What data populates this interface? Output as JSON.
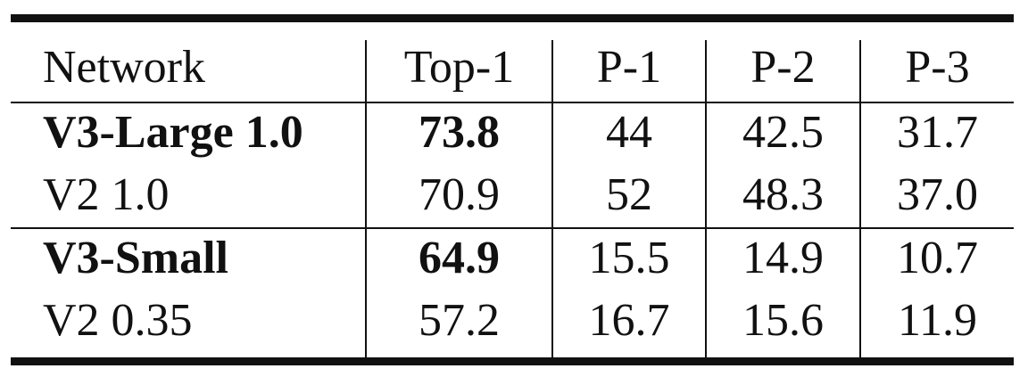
{
  "table": {
    "headers": [
      "Network",
      "Top-1",
      "P-1",
      "P-2",
      "P-3"
    ],
    "rows": [
      {
        "network": "V3-Large 1.0",
        "top1": "73.8",
        "p1": "44",
        "p2": "42.5",
        "p3": "31.7"
      },
      {
        "network": "V2 1.0",
        "top1": "70.9",
        "p1": "52",
        "p2": "48.3",
        "p3": "37.0"
      },
      {
        "network": "V3-Small",
        "top1": "64.9",
        "p1": "15.5",
        "p2": "14.9",
        "p3": "10.7"
      },
      {
        "network": "V2 0.35",
        "top1": "57.2",
        "p1": "16.7",
        "p2": "15.6",
        "p3": "11.9"
      }
    ],
    "bold_rows": [
      0,
      2
    ]
  }
}
